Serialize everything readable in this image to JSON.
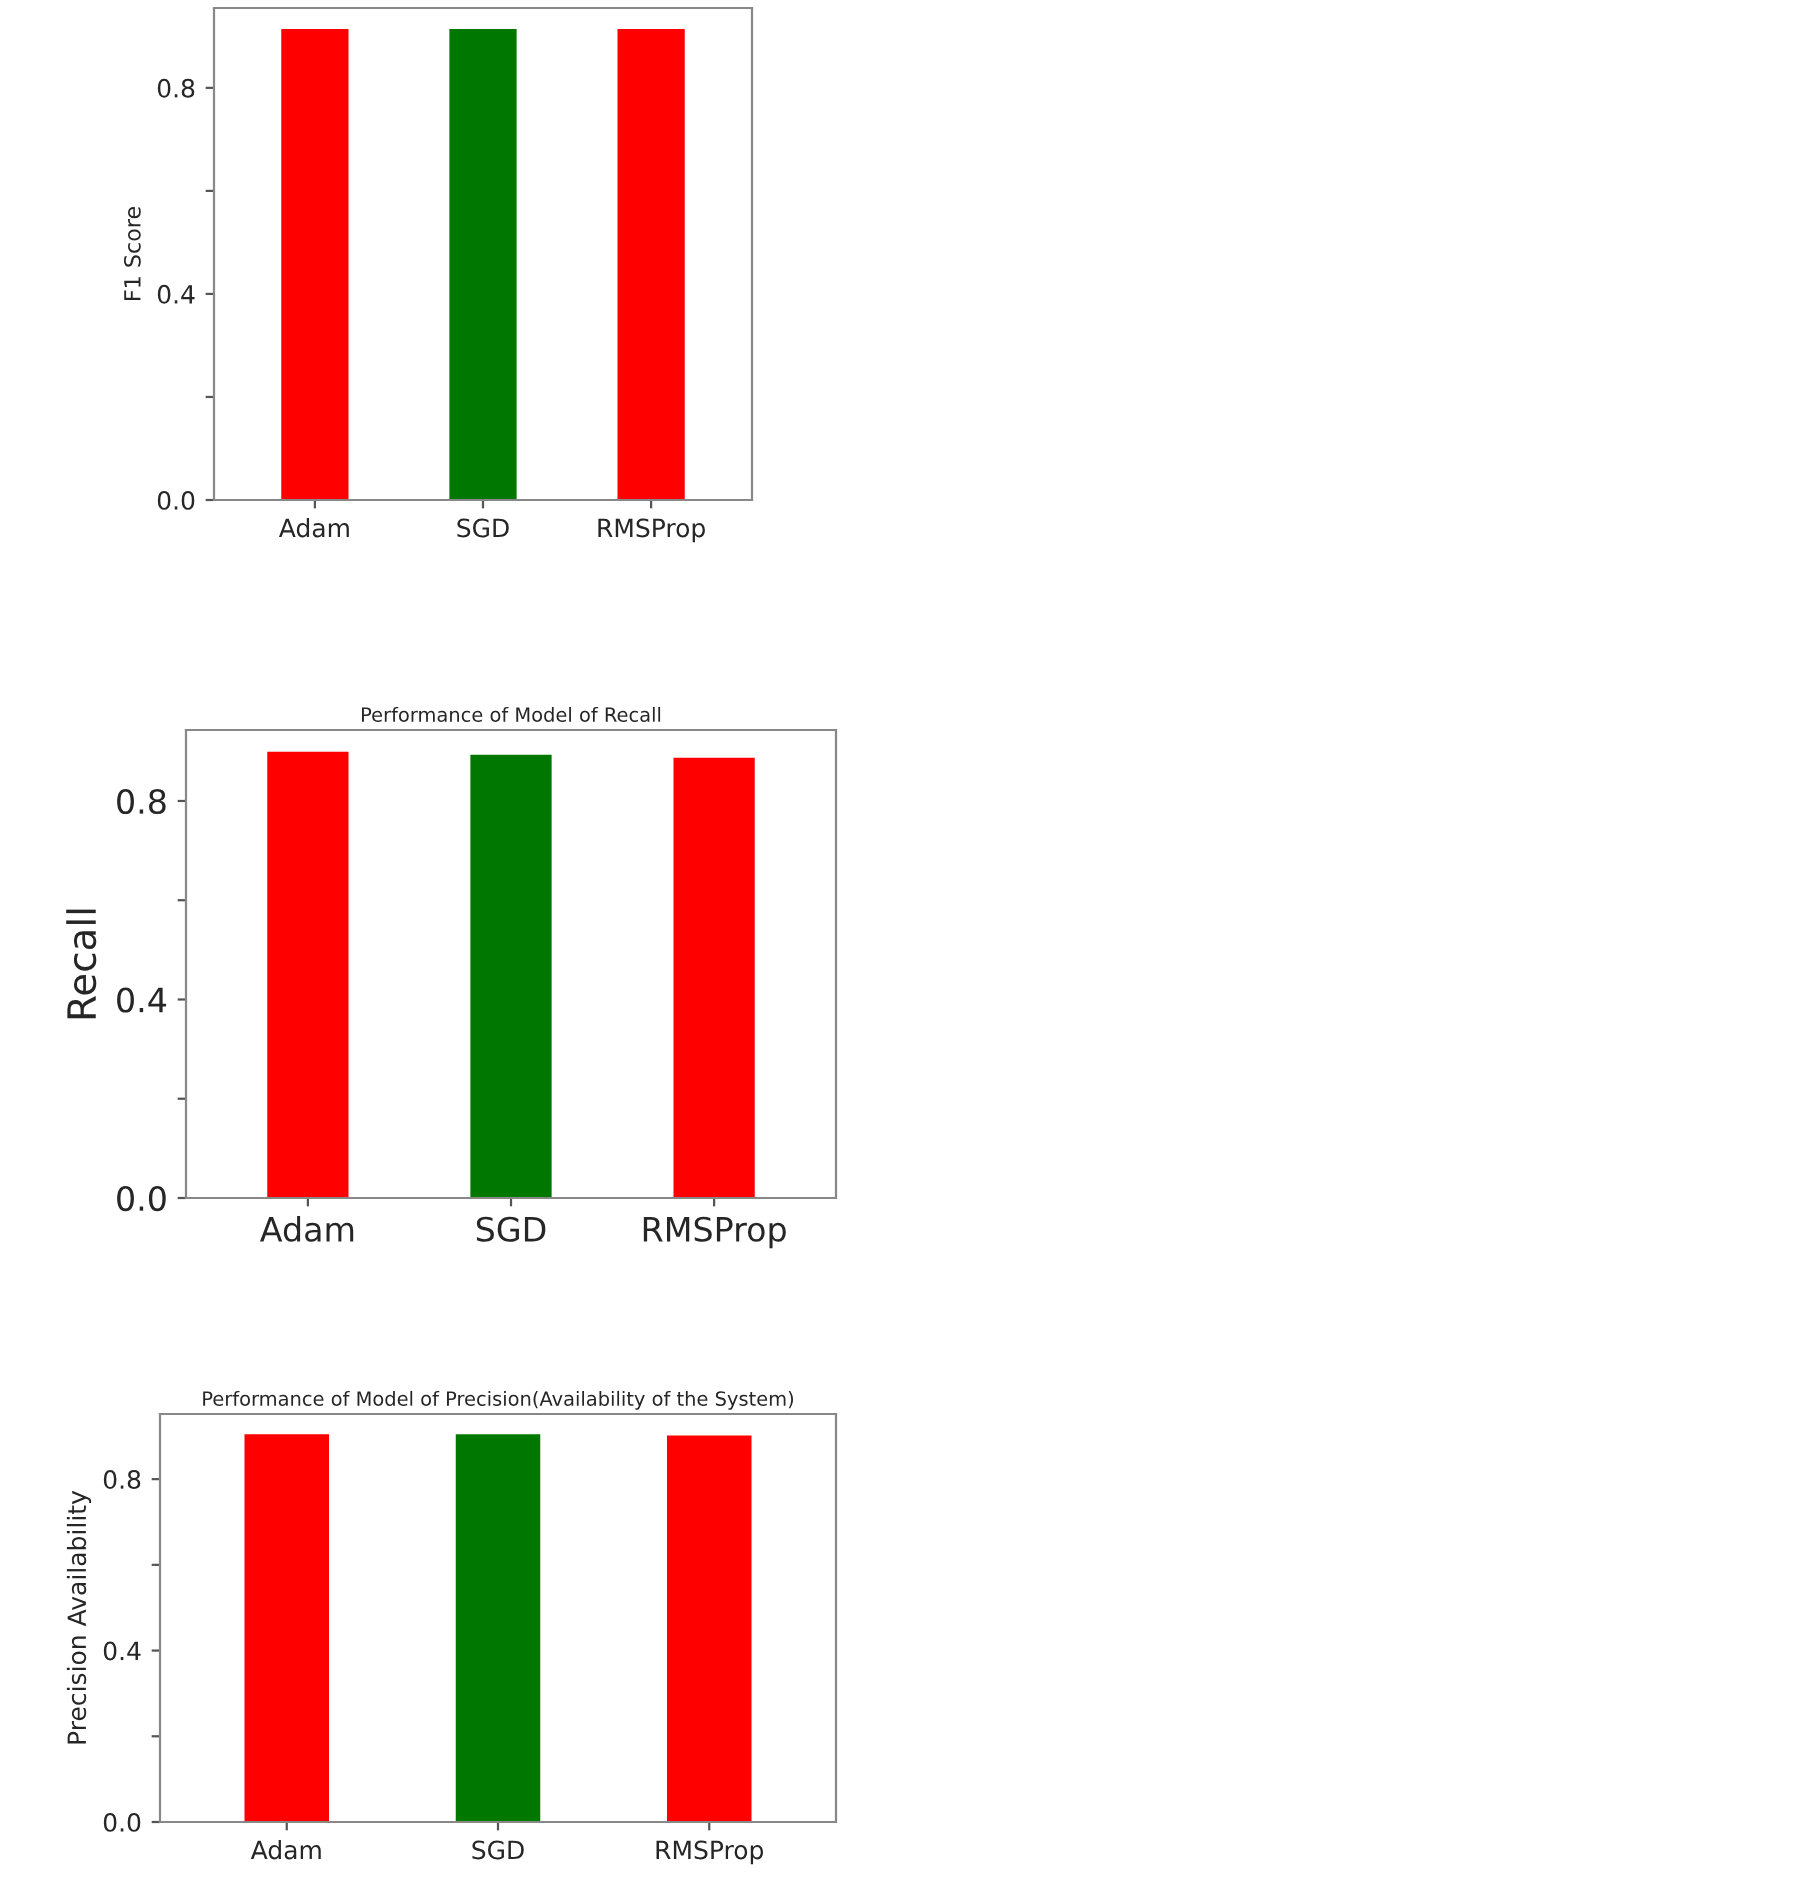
{
  "chart_data": [
    {
      "type": "bar",
      "ylabel": "F1 Score",
      "categories": [
        "Adam",
        "SGD",
        "RMSProp"
      ],
      "values": [
        0.914,
        0.914,
        0.914
      ],
      "colors": [
        "#ff0000",
        "#007800",
        "#ff0000"
      ],
      "ylim": [
        0,
        0.955
      ],
      "yticks": [
        {
          "value": 0.0,
          "label": "0.0"
        },
        {
          "value": 0.2,
          "label": null
        },
        {
          "value": 0.4,
          "label": "0.4"
        },
        {
          "value": 0.6,
          "label": null
        },
        {
          "value": 0.8,
          "label": "0.8"
        }
      ],
      "grid": false,
      "legend": false
    },
    {
      "type": "bar",
      "title": "Performance of Model of Recall",
      "ylabel": "Recall",
      "categories": [
        "Adam",
        "SGD",
        "RMSProp"
      ],
      "values": [
        0.899,
        0.893,
        0.887
      ],
      "colors": [
        "#ff0000",
        "#007800",
        "#ff0000"
      ],
      "ylim": [
        0,
        0.943
      ],
      "yticks": [
        {
          "value": 0.0,
          "label": "0.0"
        },
        {
          "value": 0.2,
          "label": null
        },
        {
          "value": 0.4,
          "label": "0.4"
        },
        {
          "value": 0.6,
          "label": null
        },
        {
          "value": 0.8,
          "label": "0.8"
        }
      ],
      "grid": false,
      "legend": false
    },
    {
      "type": "bar",
      "title": "Performance of Model of Precision(Availability of the System)",
      "ylabel": "Precision Availability",
      "categories": [
        "Adam",
        "SGD",
        "RMSProp"
      ],
      "values": [
        0.905,
        0.905,
        0.902
      ],
      "colors": [
        "#ff0000",
        "#007800",
        "#ff0000"
      ],
      "ylim": [
        0,
        0.952
      ],
      "yticks": [
        {
          "value": 0.0,
          "label": "0.0"
        },
        {
          "value": 0.2,
          "label": null
        },
        {
          "value": 0.4,
          "label": "0.4"
        },
        {
          "value": 0.6,
          "label": null
        },
        {
          "value": 0.8,
          "label": "0.8"
        }
      ],
      "grid": false,
      "legend": false
    }
  ]
}
